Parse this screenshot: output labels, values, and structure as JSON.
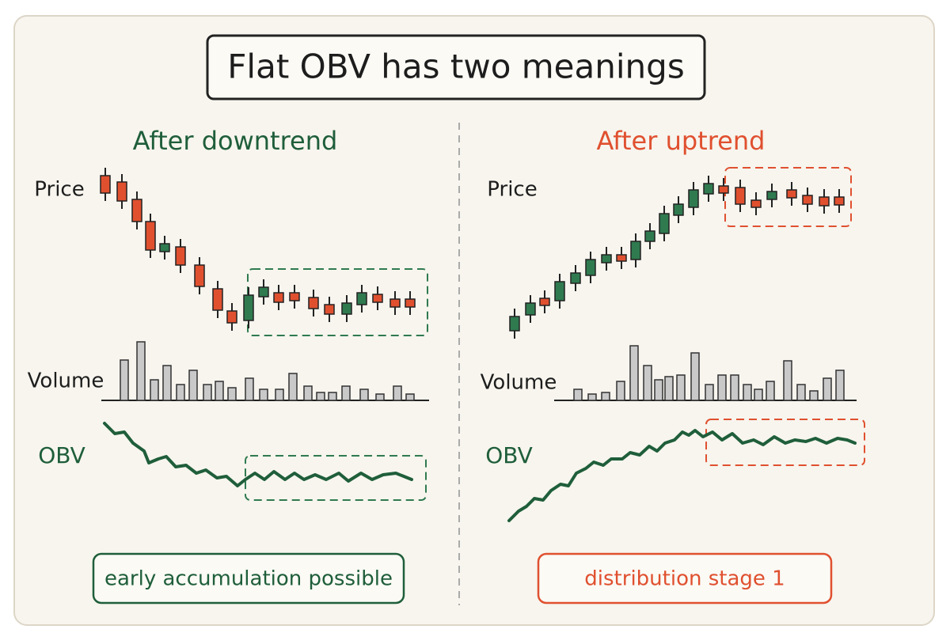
{
  "title": "Flat OBV has two meanings",
  "panels": [
    {
      "heading": "After downtrend",
      "price_label": "Price",
      "volume_label": "Volume",
      "obv_label": "OBV",
      "note": "early accumulation possible"
    },
    {
      "heading": "After uptrend",
      "price_label": "Price",
      "volume_label": "Volume",
      "obv_label": "OBV",
      "note": "distribution stage 1"
    }
  ]
}
